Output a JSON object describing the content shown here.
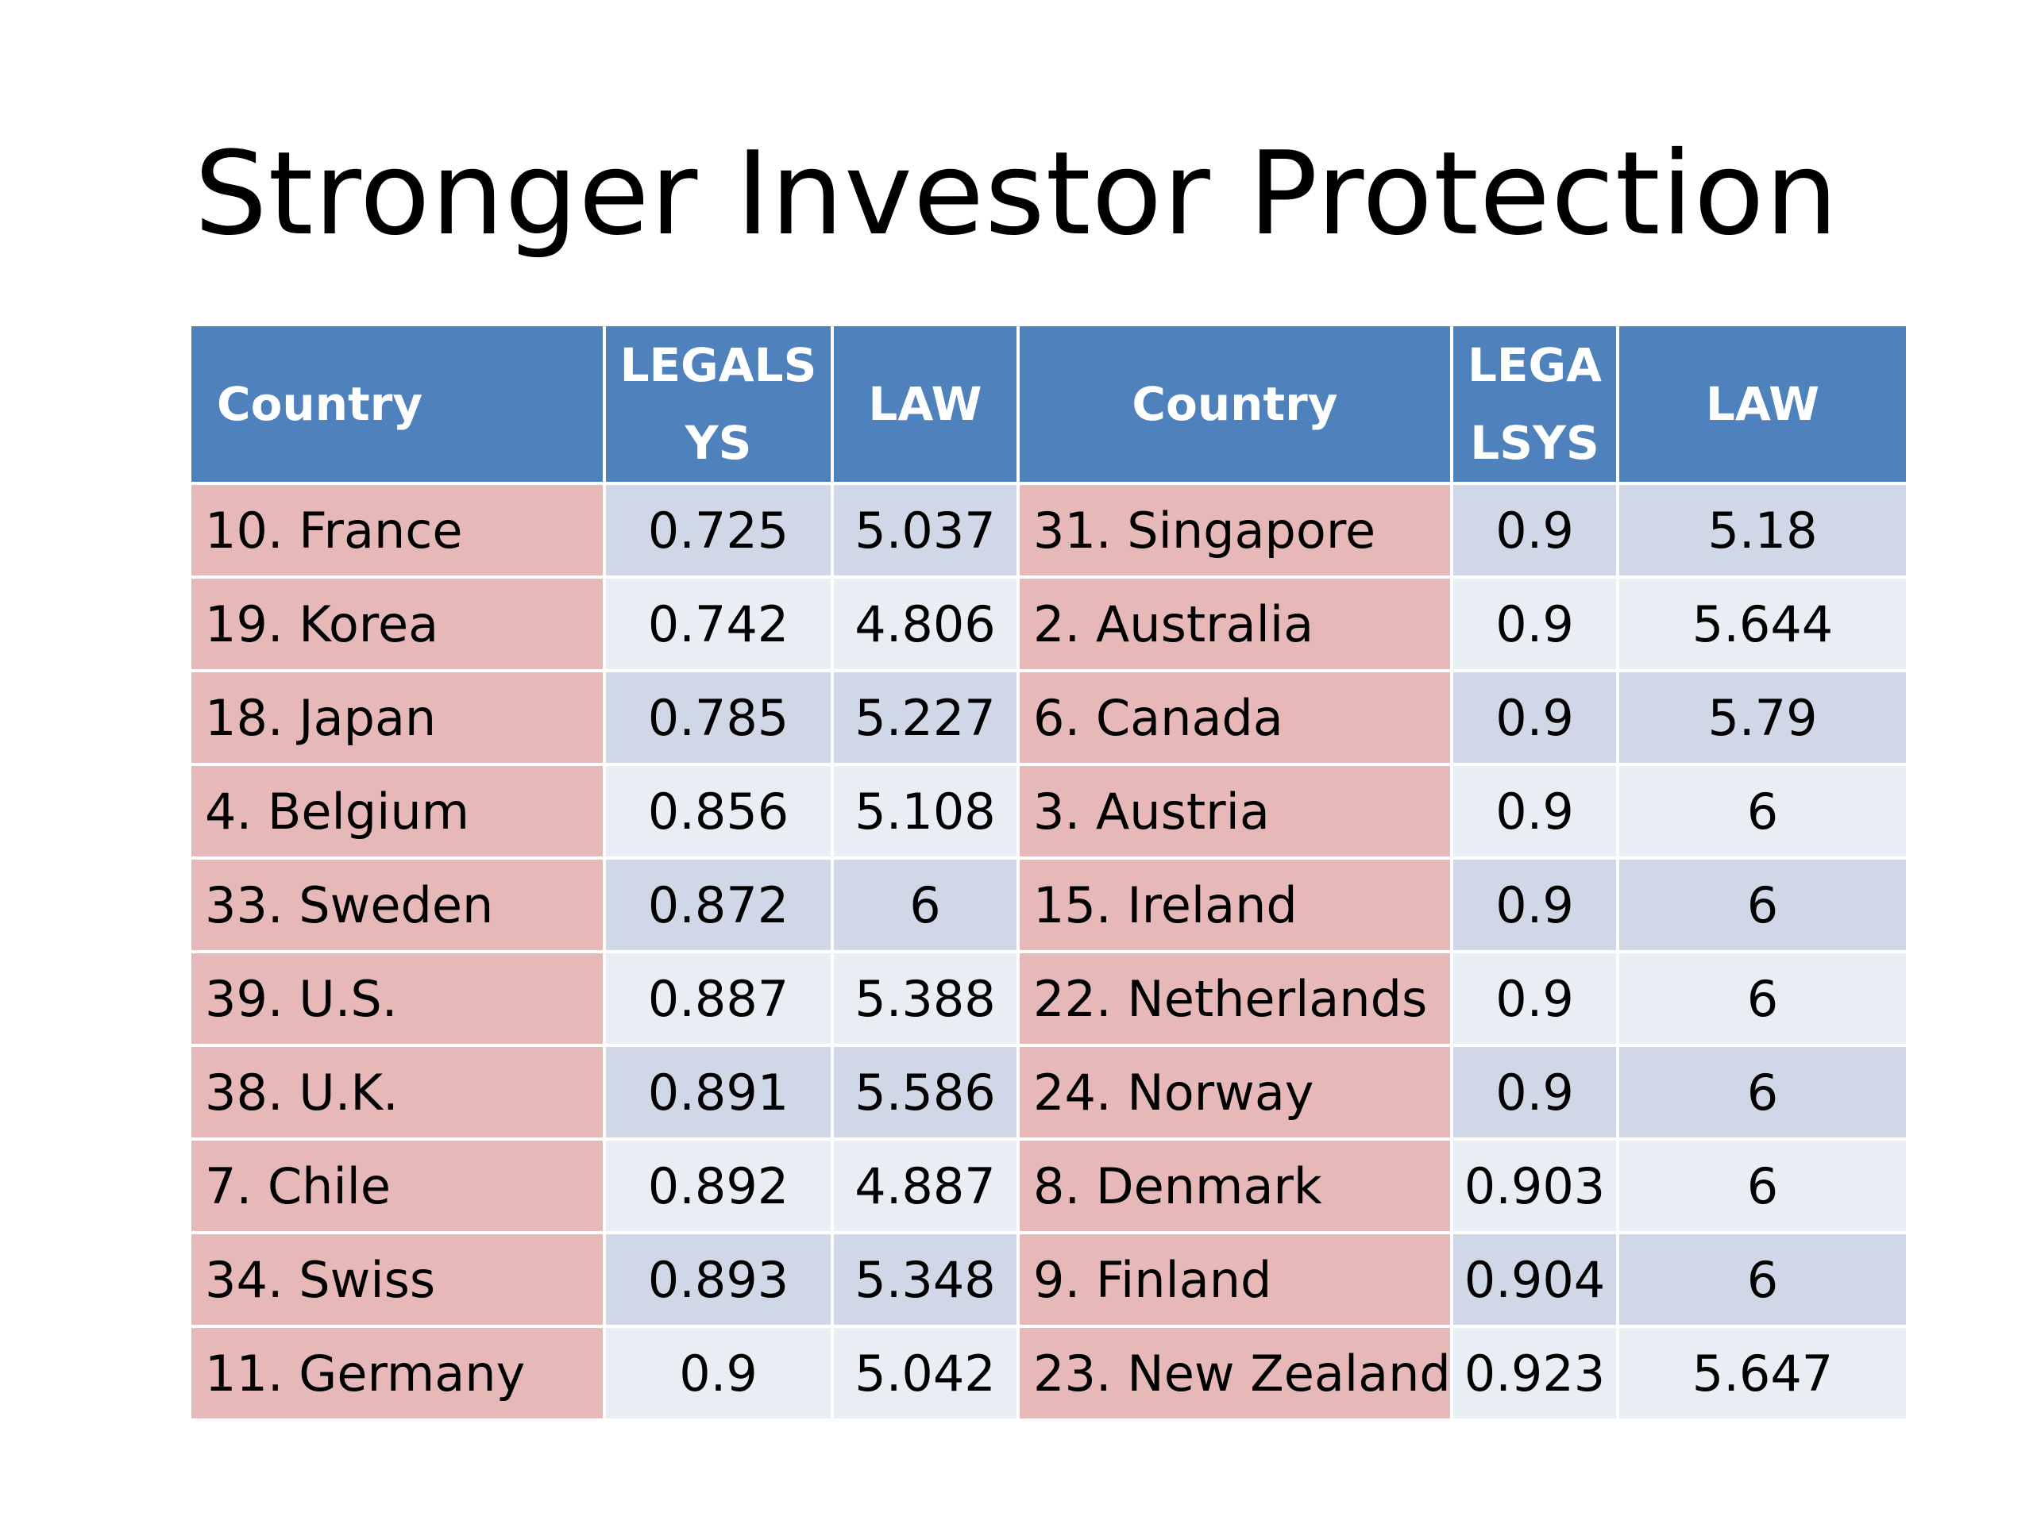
{
  "title": "Stronger Investor Protection",
  "table": {
    "headers": {
      "country_left": "Country",
      "legalsys_left": [
        "LEGALS",
        "YS"
      ],
      "law_left": "LAW",
      "country_right": "Country",
      "legalsys_right": [
        "LEGA",
        "LSYS"
      ],
      "law_right": "LAW"
    },
    "rows": [
      {
        "country_l": "10. France",
        "legalsys_l": "0.725",
        "law_l": "5.037",
        "country_r": "31. Singapore",
        "legalsys_r": "0.9",
        "law_r": "5.18"
      },
      {
        "country_l": "19. Korea",
        "legalsys_l": "0.742",
        "law_l": "4.806",
        "country_r": "2. Australia",
        "legalsys_r": "0.9",
        "law_r": "5.644"
      },
      {
        "country_l": "18. Japan",
        "legalsys_l": "0.785",
        "law_l": "5.227",
        "country_r": "6. Canada",
        "legalsys_r": "0.9",
        "law_r": "5.79"
      },
      {
        "country_l": "4. Belgium",
        "legalsys_l": "0.856",
        "law_l": "5.108",
        "country_r": "3. Austria",
        "legalsys_r": "0.9",
        "law_r": "6"
      },
      {
        "country_l": "33. Sweden",
        "legalsys_l": "0.872",
        "law_l": "6",
        "country_r": "15. Ireland",
        "legalsys_r": "0.9",
        "law_r": "6"
      },
      {
        "country_l": "39. U.S.",
        "legalsys_l": "0.887",
        "law_l": "5.388",
        "country_r": "22. Netherlands",
        "legalsys_r": "0.9",
        "law_r": "6"
      },
      {
        "country_l": "38. U.K.",
        "legalsys_l": "0.891",
        "law_l": "5.586",
        "country_r": "24. Norway",
        "legalsys_r": "0.9",
        "law_r": "6"
      },
      {
        "country_l": "7. Chile",
        "legalsys_l": "0.892",
        "law_l": "4.887",
        "country_r": "8. Denmark",
        "legalsys_r": "0.903",
        "law_r": "6"
      },
      {
        "country_l": "34. Swiss",
        "legalsys_l": "0.893",
        "law_l": "5.348",
        "country_r": "9. Finland",
        "legalsys_r": "0.904",
        "law_r": "6"
      },
      {
        "country_l": "11. Germany",
        "legalsys_l": "0.9",
        "law_l": "5.042",
        "country_r": "23. New Zealand",
        "legalsys_r": "0.923",
        "law_r": "5.647"
      }
    ]
  },
  "colors": {
    "header_bg": "#4f81bd",
    "country_cell_bg": "#e6b9b8",
    "numeric_band_dark": "#d0d8e8",
    "numeric_band_light": "#e9edf4"
  }
}
